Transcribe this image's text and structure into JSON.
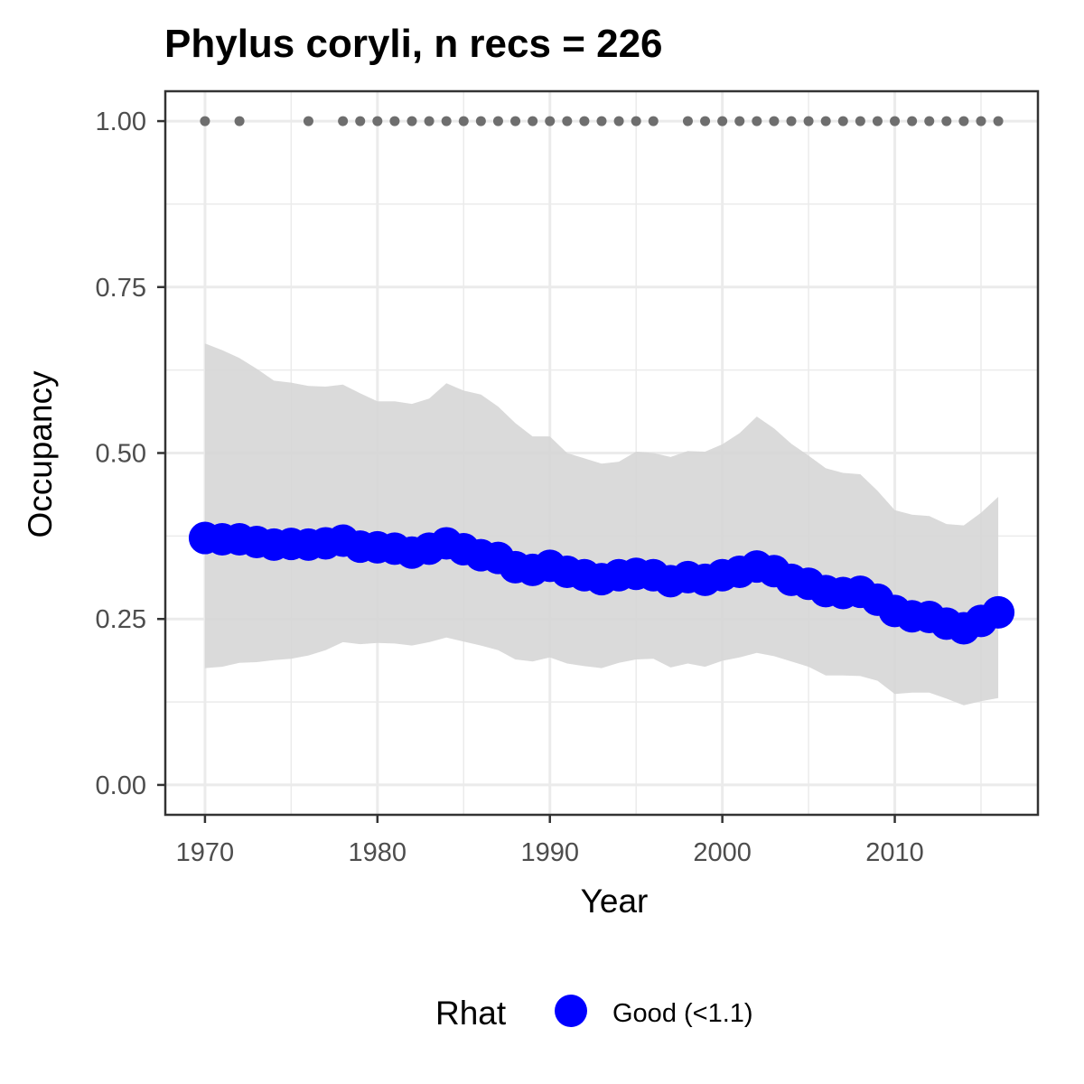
{
  "chart_data": {
    "type": "line",
    "title": "Phylus coryli, n recs = 226",
    "xlabel": "Year",
    "ylabel": "Occupancy",
    "xlim": [
      1967.7,
      2018.3
    ],
    "ylim": [
      -0.045,
      1.045
    ],
    "x_ticks": [
      1970,
      1980,
      1990,
      2000,
      2010
    ],
    "x_tick_labels": [
      "1970",
      "1980",
      "1990",
      "2000",
      "2010"
    ],
    "y_ticks": [
      0,
      0.25,
      0.5,
      0.75,
      1.0
    ],
    "y_tick_labels": [
      "0.00",
      "0.25",
      "0.50",
      "0.75",
      "1.00"
    ],
    "grid": true,
    "legend_position": "bottom",
    "legend": {
      "title": "Rhat",
      "entries": [
        {
          "label": "Good (<1.1)",
          "color": "#0000ff"
        }
      ]
    },
    "colors": {
      "point": "#0000ff",
      "ribbon": "#d6d6d6",
      "record": "#6e6e6e",
      "grid": "#ebebeb",
      "panel_border": "#333333"
    },
    "years": [
      1970,
      1971,
      1972,
      1973,
      1974,
      1975,
      1976,
      1977,
      1978,
      1979,
      1980,
      1981,
      1982,
      1983,
      1984,
      1985,
      1986,
      1987,
      1988,
      1989,
      1990,
      1991,
      1992,
      1993,
      1994,
      1995,
      1996,
      1997,
      1998,
      1999,
      2000,
      2001,
      2002,
      2003,
      2004,
      2005,
      2006,
      2007,
      2008,
      2009,
      2010,
      2011,
      2012,
      2013,
      2014,
      2015,
      2016
    ],
    "series": [
      {
        "name": "Good (<1.1)",
        "values": [
          0.372,
          0.37,
          0.37,
          0.366,
          0.362,
          0.363,
          0.362,
          0.364,
          0.368,
          0.359,
          0.358,
          0.356,
          0.35,
          0.356,
          0.364,
          0.355,
          0.346,
          0.342,
          0.328,
          0.324,
          0.33,
          0.321,
          0.316,
          0.31,
          0.316,
          0.318,
          0.316,
          0.307,
          0.313,
          0.309,
          0.316,
          0.321,
          0.329,
          0.322,
          0.309,
          0.303,
          0.292,
          0.289,
          0.291,
          0.279,
          0.262,
          0.254,
          0.253,
          0.243,
          0.236,
          0.247,
          0.26
        ]
      }
    ],
    "ribbon_upper": [
      0.665,
      0.655,
      0.643,
      0.627,
      0.609,
      0.606,
      0.601,
      0.6,
      0.603,
      0.59,
      0.578,
      0.578,
      0.574,
      0.582,
      0.605,
      0.594,
      0.588,
      0.57,
      0.545,
      0.525,
      0.525,
      0.5,
      0.492,
      0.484,
      0.487,
      0.502,
      0.5,
      0.494,
      0.503,
      0.502,
      0.513,
      0.53,
      0.555,
      0.537,
      0.514,
      0.496,
      0.477,
      0.47,
      0.468,
      0.443,
      0.414,
      0.407,
      0.405,
      0.393,
      0.391,
      0.41,
      0.434
    ],
    "ribbon_lower": [
      0.176,
      0.178,
      0.184,
      0.185,
      0.188,
      0.19,
      0.195,
      0.203,
      0.215,
      0.212,
      0.214,
      0.213,
      0.21,
      0.215,
      0.222,
      0.216,
      0.21,
      0.203,
      0.189,
      0.186,
      0.192,
      0.183,
      0.179,
      0.176,
      0.184,
      0.189,
      0.19,
      0.177,
      0.183,
      0.178,
      0.187,
      0.192,
      0.199,
      0.194,
      0.186,
      0.178,
      0.165,
      0.165,
      0.164,
      0.157,
      0.137,
      0.139,
      0.139,
      0.13,
      0.12,
      0.126,
      0.131
    ],
    "record_years": [
      1970,
      1972,
      1976,
      1978,
      1979,
      1980,
      1981,
      1982,
      1983,
      1984,
      1985,
      1986,
      1987,
      1988,
      1989,
      1990,
      1991,
      1992,
      1993,
      1994,
      1995,
      1996,
      1998,
      1999,
      2000,
      2001,
      2002,
      2003,
      2004,
      2005,
      2006,
      2007,
      2008,
      2009,
      2010,
      2011,
      2012,
      2013,
      2014,
      2015,
      2016
    ],
    "record_value": 1.0
  }
}
